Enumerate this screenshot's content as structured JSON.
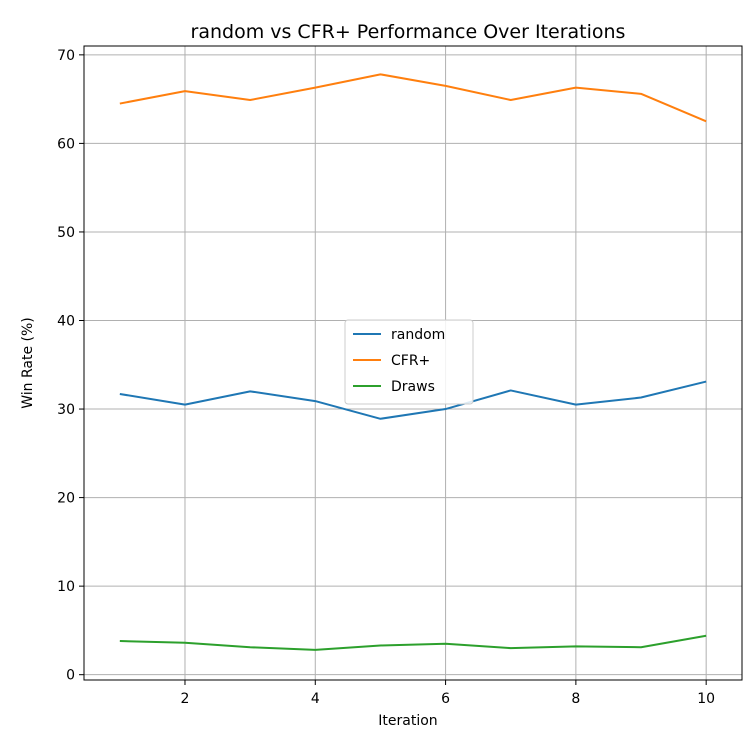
{
  "chart_data": {
    "type": "line",
    "title": "random vs CFR+ Performance Over Iterations",
    "xlabel": "Iteration",
    "ylabel": "Win Rate (%)",
    "x": [
      1,
      2,
      3,
      4,
      5,
      6,
      7,
      8,
      9,
      10
    ],
    "xlim": [
      0.45,
      10.55
    ],
    "ylim": [
      -0.6,
      71
    ],
    "xticks": [
      2,
      4,
      6,
      8,
      10
    ],
    "yticks": [
      0,
      10,
      20,
      30,
      40,
      50,
      60,
      70
    ],
    "grid": true,
    "legend_position": "center",
    "series": [
      {
        "name": "random",
        "color": "#1f77b4",
        "values": [
          31.7,
          30.5,
          32.0,
          30.9,
          28.9,
          30.0,
          32.1,
          30.5,
          31.3,
          33.1
        ]
      },
      {
        "name": "CFR+",
        "color": "#ff7f0e",
        "values": [
          64.5,
          65.9,
          64.9,
          66.3,
          67.8,
          66.5,
          64.9,
          66.3,
          65.6,
          62.5
        ]
      },
      {
        "name": "Draws",
        "color": "#2ca02c",
        "values": [
          3.8,
          3.6,
          3.1,
          2.8,
          3.3,
          3.5,
          3.0,
          3.2,
          3.1,
          4.4
        ]
      }
    ]
  }
}
